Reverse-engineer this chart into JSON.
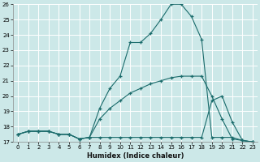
{
  "xlabel": "Humidex (Indice chaleur)",
  "bg_color": "#cce8e8",
  "line_color": "#1a6b6b",
  "grid_color": "#ffffff",
  "xlim": [
    -0.5,
    23.5
  ],
  "ylim": [
    17,
    26
  ],
  "yticks": [
    17,
    18,
    19,
    20,
    21,
    22,
    23,
    24,
    25,
    26
  ],
  "xticks": [
    0,
    1,
    2,
    3,
    4,
    5,
    6,
    7,
    8,
    9,
    10,
    11,
    12,
    13,
    14,
    15,
    16,
    17,
    18,
    19,
    20,
    21,
    22,
    23
  ],
  "series": [
    {
      "x": [
        0,
        1,
        2,
        3,
        4,
        5,
        6,
        7,
        8,
        9,
        10,
        11,
        12,
        13,
        14,
        15,
        16,
        17,
        18,
        19,
        20,
        21,
        22,
        23
      ],
      "y": [
        17.5,
        17.7,
        17.7,
        17.7,
        17.5,
        17.5,
        17.2,
        17.3,
        19.2,
        20.5,
        21.3,
        23.5,
        23.5,
        24.1,
        25.0,
        26.0,
        26.0,
        25.2,
        23.7,
        17.3,
        17.3,
        17.3,
        17.1,
        17.0
      ]
    },
    {
      "x": [
        0,
        1,
        2,
        3,
        4,
        5,
        6,
        7,
        8,
        9,
        10,
        11,
        12,
        13,
        14,
        15,
        16,
        17,
        18,
        19,
        20,
        21,
        22,
        23
      ],
      "y": [
        17.5,
        17.7,
        17.7,
        17.7,
        17.5,
        17.5,
        17.2,
        17.3,
        18.5,
        19.2,
        19.7,
        20.2,
        20.5,
        20.8,
        21.0,
        21.2,
        21.3,
        21.3,
        21.3,
        20.0,
        18.5,
        17.2,
        17.1,
        17.0
      ]
    },
    {
      "x": [
        0,
        1,
        2,
        3,
        4,
        5,
        6,
        7,
        8,
        9,
        10,
        11,
        12,
        13,
        14,
        15,
        16,
        17,
        18,
        19,
        20,
        21,
        22,
        23
      ],
      "y": [
        17.5,
        17.7,
        17.7,
        17.7,
        17.5,
        17.5,
        17.2,
        17.3,
        17.3,
        17.3,
        17.3,
        17.3,
        17.3,
        17.3,
        17.3,
        17.3,
        17.3,
        17.3,
        17.3,
        19.7,
        20.0,
        18.3,
        17.1,
        17.0
      ]
    }
  ]
}
